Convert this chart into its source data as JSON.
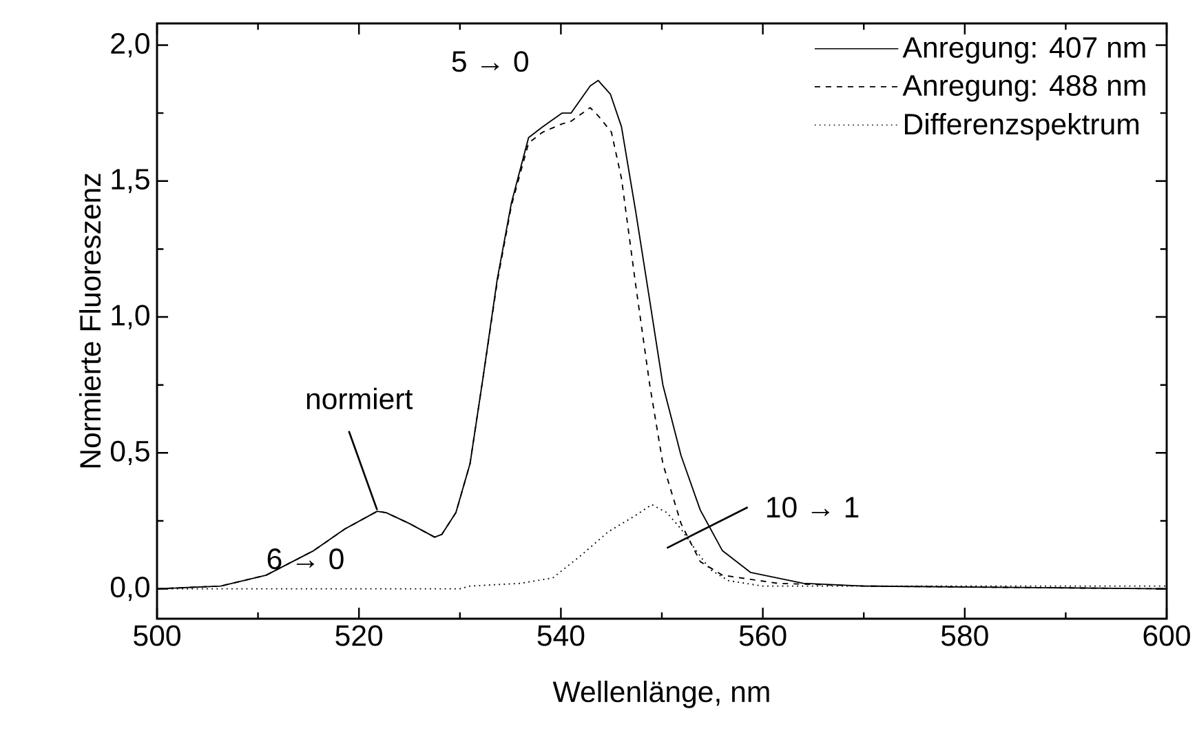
{
  "chart_data": {
    "type": "line",
    "xlabel": "Wellenlänge, nm",
    "ylabel": "Normierte Fluoreszenz",
    "xlim": [
      500,
      600
    ],
    "ylim": [
      -0.11,
      2.08
    ],
    "xticks": [
      500,
      520,
      540,
      560,
      580,
      600
    ],
    "yticks": [
      {
        "value": 0,
        "label": "0,0"
      },
      {
        "value": 0.5,
        "label": "0,5"
      },
      {
        "value": 1.0,
        "label": "1,0"
      },
      {
        "value": 1.5,
        "label": "1,5"
      },
      {
        "value": 2.0,
        "label": "2,0"
      }
    ],
    "legend": "top right",
    "series": [
      {
        "name": "Anregung: 407 nm",
        "color": "#000000",
        "line_style": "solid",
        "x": [
          500,
          506.3,
          510.8,
          515.5,
          518.6,
          521.8,
          522.7,
          525,
          527.5,
          528.2,
          529.6,
          531,
          532.3,
          533.7,
          535.1,
          536.8,
          538.2,
          540.1,
          541,
          542.9,
          543.7,
          544.9,
          546,
          547.4,
          548.8,
          550.1,
          551.9,
          553.8,
          556,
          558.8,
          564,
          570,
          600
        ],
        "values": [
          0,
          0.01,
          0.05,
          0.14,
          0.22,
          0.285,
          0.28,
          0.24,
          0.19,
          0.2,
          0.28,
          0.46,
          0.78,
          1.14,
          1.42,
          1.66,
          1.7,
          1.75,
          1.75,
          1.85,
          1.87,
          1.82,
          1.7,
          1.39,
          1.06,
          0.75,
          0.49,
          0.29,
          0.14,
          0.06,
          0.02,
          0.01,
          0
        ]
      },
      {
        "name": "Anregung: 488 nm",
        "color": "#000000",
        "line_style": "dashed",
        "x": [
          500,
          506.3,
          510.8,
          515.5,
          518.6,
          521.8,
          522.7,
          525,
          527.5,
          528.2,
          529.6,
          531,
          532.3,
          533.7,
          535.1,
          536.8,
          538.2,
          540.1,
          541,
          542.9,
          543.7,
          545,
          546,
          547.4,
          548.8,
          550.1,
          551.9,
          553.8,
          556,
          561.5,
          570,
          600
        ],
        "values": [
          0,
          0.01,
          0.05,
          0.14,
          0.22,
          0.285,
          0.28,
          0.24,
          0.19,
          0.2,
          0.28,
          0.46,
          0.78,
          1.13,
          1.41,
          1.64,
          1.68,
          1.71,
          1.72,
          1.77,
          1.74,
          1.68,
          1.51,
          1.12,
          0.75,
          0.46,
          0.24,
          0.1,
          0.05,
          0.02,
          0.01,
          0
        ]
      },
      {
        "name": "Differenzspektrum",
        "color": "#000000",
        "line_style": "dotted",
        "x": [
          500,
          530,
          531,
          536,
          539.2,
          541.9,
          544.7,
          547.4,
          549,
          550.5,
          551.9,
          553.4,
          554.8,
          556.6,
          560,
          600
        ],
        "values": [
          0,
          0,
          0.01,
          0.02,
          0.04,
          0.12,
          0.21,
          0.27,
          0.31,
          0.28,
          0.22,
          0.14,
          0.07,
          0.03,
          0.01,
          0.01
        ]
      }
    ],
    "annotations": [
      {
        "text": "6 → 0",
        "x": 522.7,
        "y": 0.28
      },
      {
        "text": "5 → 0",
        "x": 543.7,
        "y": 1.87
      },
      {
        "text": "normiert",
        "x": 521.8,
        "y": 0.29
      },
      "10 → 1"
    ]
  }
}
